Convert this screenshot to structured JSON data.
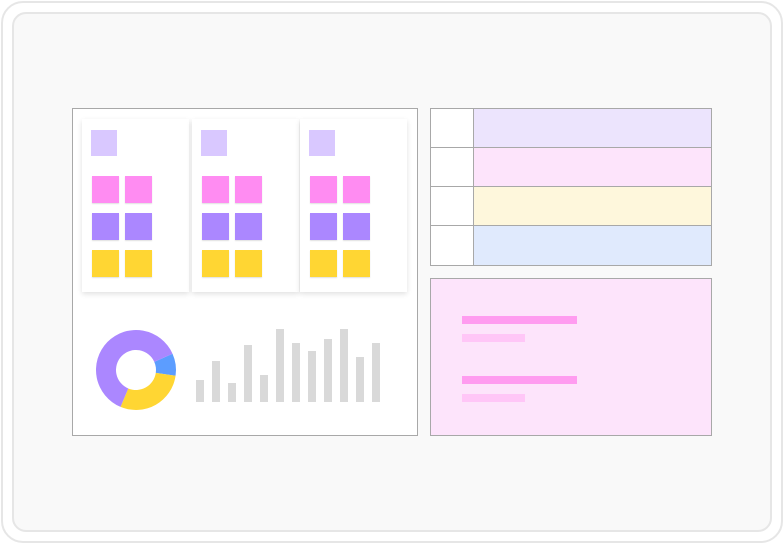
{
  "colors": {
    "pink": "#ff8cf2",
    "purple": "#ab87ff",
    "yellow": "#ffd633",
    "blue": "#5c9dff",
    "header": "#d9c8ff",
    "bar": "#d9d9d9"
  },
  "cards": [
    {
      "rows": [
        "pink",
        "purple",
        "yellow"
      ]
    },
    {
      "rows": [
        "pink",
        "purple",
        "yellow"
      ]
    },
    {
      "rows": [
        "pink",
        "purple",
        "yellow"
      ]
    }
  ],
  "donut": {
    "segments": [
      {
        "color": "purple",
        "fraction": 0.62
      },
      {
        "color": "blue",
        "fraction": 0.09
      },
      {
        "color": "yellow",
        "fraction": 0.29
      }
    ]
  },
  "bars": {
    "values": [
      22,
      41,
      19,
      57,
      27,
      73,
      59,
      51,
      63,
      73,
      45,
      59
    ]
  },
  "table": {
    "rows": [
      {
        "color": "#ece4fd"
      },
      {
        "color": "#fde4fb"
      },
      {
        "color": "#fef7dc"
      },
      {
        "color": "#e0eafd"
      }
    ]
  }
}
